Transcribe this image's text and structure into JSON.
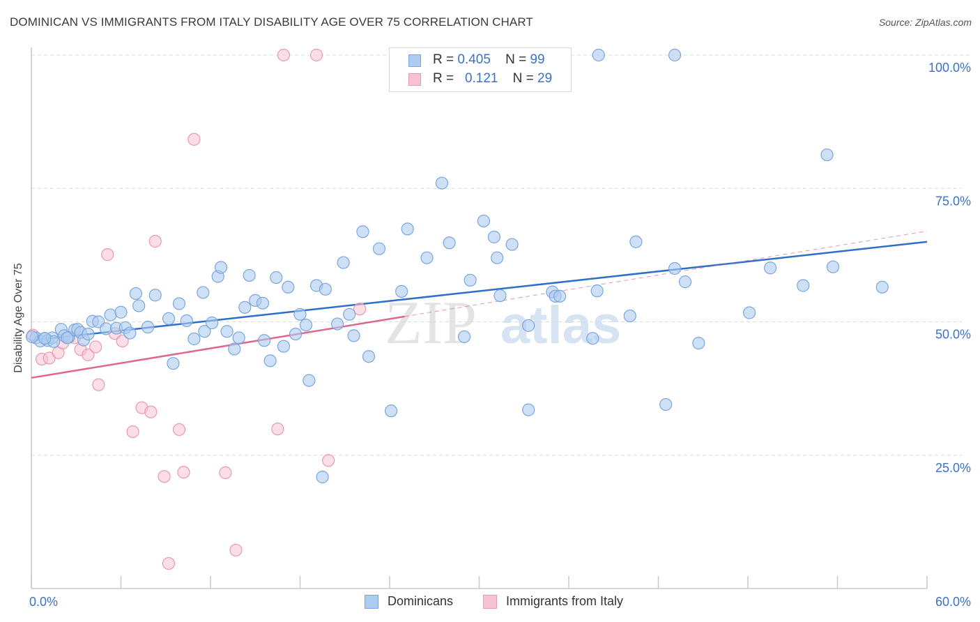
{
  "title": "DOMINICAN VS IMMIGRANTS FROM ITALY DISABILITY AGE OVER 75 CORRELATION CHART",
  "source": "Source: ZipAtlas.com",
  "watermark": {
    "zip": "ZIP",
    "atlas": "atlas"
  },
  "legend": {
    "blue": {
      "r_label": "R =",
      "r_value": "0.405",
      "n_label": "N =",
      "n_value": "99"
    },
    "pink": {
      "r_label": "R =",
      "r_value": "0.121",
      "n_label": "N =",
      "n_value": "29"
    }
  },
  "bottom_legend": {
    "blue": "Dominicans",
    "pink": "Immigrants from Italy"
  },
  "colors": {
    "blue_fill": "#aecbf0",
    "blue_stroke": "#7aa6dc",
    "blue_line": "#2f6fcc",
    "pink_fill": "#f7c3d2",
    "pink_stroke": "#e899b1",
    "pink_line": "#e06690",
    "tick_text": "#3b72c4",
    "grid": "#dcdcdc"
  },
  "chart_data": {
    "type": "scatter",
    "title": "DOMINICAN VS IMMIGRANTS FROM ITALY DISABILITY AGE OVER 75 CORRELATION CHART",
    "xlabel": "",
    "ylabel": "Disability Age Over 75",
    "xlim": [
      0,
      60
    ],
    "ylim": [
      0,
      105
    ],
    "x_tick_labels": [
      "0.0%",
      "60.0%"
    ],
    "y_tick_labels": [
      "25.0%",
      "50.0%",
      "75.0%",
      "100.0%"
    ],
    "y_ticks": [
      25,
      50,
      75,
      100
    ],
    "grid": "horizontal dashed",
    "legend_position": "top-center",
    "series": [
      {
        "name": "Dominicans",
        "trend": {
          "x": [
            0,
            60
          ],
          "y": [
            46.5,
            65.0
          ]
        },
        "points": [
          [
            0.3,
            47.0
          ],
          [
            0.6,
            46.4
          ],
          [
            0.9,
            46.9
          ],
          [
            1.1,
            46.5
          ],
          [
            1.4,
            47.0
          ],
          [
            1.5,
            46.3
          ],
          [
            2.0,
            48.6
          ],
          [
            2.2,
            47.4
          ],
          [
            2.5,
            47.1
          ],
          [
            2.9,
            48.5
          ],
          [
            3.1,
            48.6
          ],
          [
            3.3,
            48.0
          ],
          [
            3.5,
            46.6
          ],
          [
            3.8,
            47.7
          ],
          [
            4.1,
            50.1
          ],
          [
            4.5,
            50.0
          ],
          [
            5.0,
            48.7
          ],
          [
            5.3,
            51.3
          ],
          [
            5.7,
            48.8
          ],
          [
            6.0,
            51.8
          ],
          [
            6.3,
            48.9
          ],
          [
            6.6,
            47.9
          ],
          [
            7.0,
            55.3
          ],
          [
            7.2,
            53.0
          ],
          [
            7.8,
            49.0
          ],
          [
            8.3,
            55.0
          ],
          [
            9.2,
            50.6
          ],
          [
            9.5,
            42.2
          ],
          [
            9.9,
            53.4
          ],
          [
            10.4,
            50.2
          ],
          [
            10.9,
            46.8
          ],
          [
            11.5,
            55.5
          ],
          [
            11.6,
            48.2
          ],
          [
            12.1,
            49.8
          ],
          [
            12.5,
            58.5
          ],
          [
            12.7,
            60.2
          ],
          [
            13.1,
            48.2
          ],
          [
            13.6,
            44.9
          ],
          [
            13.9,
            47.0
          ],
          [
            14.3,
            52.7
          ],
          [
            14.6,
            58.7
          ],
          [
            15.0,
            54.0
          ],
          [
            15.5,
            53.5
          ],
          [
            15.6,
            46.5
          ],
          [
            16.0,
            42.7
          ],
          [
            16.4,
            58.3
          ],
          [
            16.9,
            45.4
          ],
          [
            17.2,
            56.5
          ],
          [
            17.7,
            47.7
          ],
          [
            18.0,
            51.4
          ],
          [
            18.4,
            49.4
          ],
          [
            18.6,
            39.0
          ],
          [
            19.1,
            56.8
          ],
          [
            19.5,
            20.9
          ],
          [
            19.7,
            56.1
          ],
          [
            20.5,
            49.6
          ],
          [
            20.9,
            61.1
          ],
          [
            21.3,
            51.4
          ],
          [
            21.6,
            47.4
          ],
          [
            22.2,
            66.9
          ],
          [
            22.6,
            43.5
          ],
          [
            23.3,
            63.7
          ],
          [
            24.1,
            33.3
          ],
          [
            24.8,
            55.7
          ],
          [
            25.2,
            67.4
          ],
          [
            26.5,
            62.0
          ],
          [
            27.5,
            76.0
          ],
          [
            28.0,
            64.8
          ],
          [
            29.0,
            47.2
          ],
          [
            29.4,
            57.8
          ],
          [
            30.3,
            68.9
          ],
          [
            31.0,
            65.9
          ],
          [
            31.2,
            62.0
          ],
          [
            31.4,
            54.9
          ],
          [
            32.2,
            64.5
          ],
          [
            33.3,
            49.3
          ],
          [
            33.3,
            33.5
          ],
          [
            34.9,
            55.6
          ],
          [
            35.1,
            54.8
          ],
          [
            35.4,
            54.8
          ],
          [
            37.6,
            46.9
          ],
          [
            37.9,
            55.8
          ],
          [
            38.0,
            100.0
          ],
          [
            40.1,
            51.1
          ],
          [
            40.5,
            65.0
          ],
          [
            42.5,
            34.5
          ],
          [
            43.1,
            100.0
          ],
          [
            43.1,
            60.0
          ],
          [
            43.8,
            57.5
          ],
          [
            44.7,
            46.0
          ],
          [
            48.1,
            51.7
          ],
          [
            49.5,
            60.1
          ],
          [
            51.7,
            56.8
          ],
          [
            53.3,
            81.3
          ],
          [
            53.7,
            60.3
          ],
          [
            57.0,
            56.5
          ],
          [
            0.05,
            47.2
          ],
          [
            0.9,
            46.9
          ],
          [
            2.4,
            47.0
          ]
        ]
      },
      {
        "name": "Immigrants from Italy",
        "trend": {
          "x": [
            0,
            25
          ],
          "y": [
            39.5,
            51.0
          ]
        },
        "trend_dashed": {
          "x": [
            25,
            60
          ],
          "y": [
            51.0,
            67.0
          ]
        },
        "points": [
          [
            0.1,
            47.5
          ],
          [
            0.7,
            43.0
          ],
          [
            1.2,
            43.2
          ],
          [
            1.8,
            44.2
          ],
          [
            2.1,
            46.0
          ],
          [
            2.9,
            47.0
          ],
          [
            3.3,
            44.8
          ],
          [
            3.8,
            43.8
          ],
          [
            4.3,
            45.3
          ],
          [
            4.5,
            38.2
          ],
          [
            5.1,
            62.6
          ],
          [
            5.6,
            47.8
          ],
          [
            6.1,
            46.4
          ],
          [
            6.8,
            29.4
          ],
          [
            7.4,
            33.9
          ],
          [
            8.0,
            33.1
          ],
          [
            8.3,
            65.1
          ],
          [
            8.9,
            21.0
          ],
          [
            9.2,
            4.7
          ],
          [
            9.9,
            29.8
          ],
          [
            10.2,
            21.8
          ],
          [
            10.9,
            84.2
          ],
          [
            13.0,
            21.7
          ],
          [
            13.7,
            7.2
          ],
          [
            16.5,
            29.9
          ],
          [
            16.9,
            100.0
          ],
          [
            19.1,
            100.0
          ],
          [
            19.9,
            24.0
          ],
          [
            22.0,
            52.4
          ]
        ]
      }
    ]
  }
}
